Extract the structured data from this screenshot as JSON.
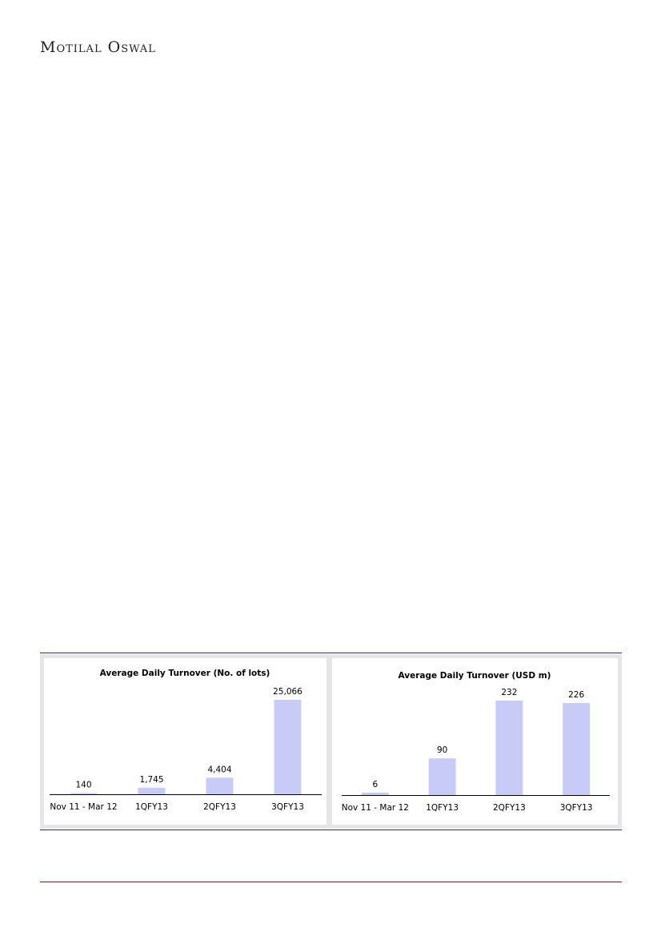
{
  "header": {
    "brand": "Motilal Oswal"
  },
  "colors": {
    "bar": "#c9cbf7",
    "rule": "#2b2f6e",
    "footer_rule": "#7a1a1a",
    "band": "#e6e6e6"
  },
  "chart_data": [
    {
      "type": "bar",
      "title": "Average Daily Turnover (No. of lots)",
      "categories": [
        "Nov 11 - Mar 12",
        "1QFY13",
        "2QFY13",
        "3QFY13"
      ],
      "values": [
        140,
        1745,
        4404,
        25066
      ],
      "labels": [
        "140",
        "1,745",
        "4,404",
        "25,066"
      ],
      "xlabel": "",
      "ylabel": "",
      "grid": false,
      "legend": "none"
    },
    {
      "type": "bar",
      "title": "Average Daily Turnover (USD m)",
      "categories": [
        "Nov 11 - Mar 12",
        "1QFY13",
        "2QFY13",
        "3QFY13"
      ],
      "values": [
        6,
        90,
        232,
        226
      ],
      "labels": [
        "6",
        "90",
        "232",
        "226"
      ],
      "xlabel": "",
      "ylabel": "",
      "grid": false,
      "legend": "none"
    }
  ]
}
